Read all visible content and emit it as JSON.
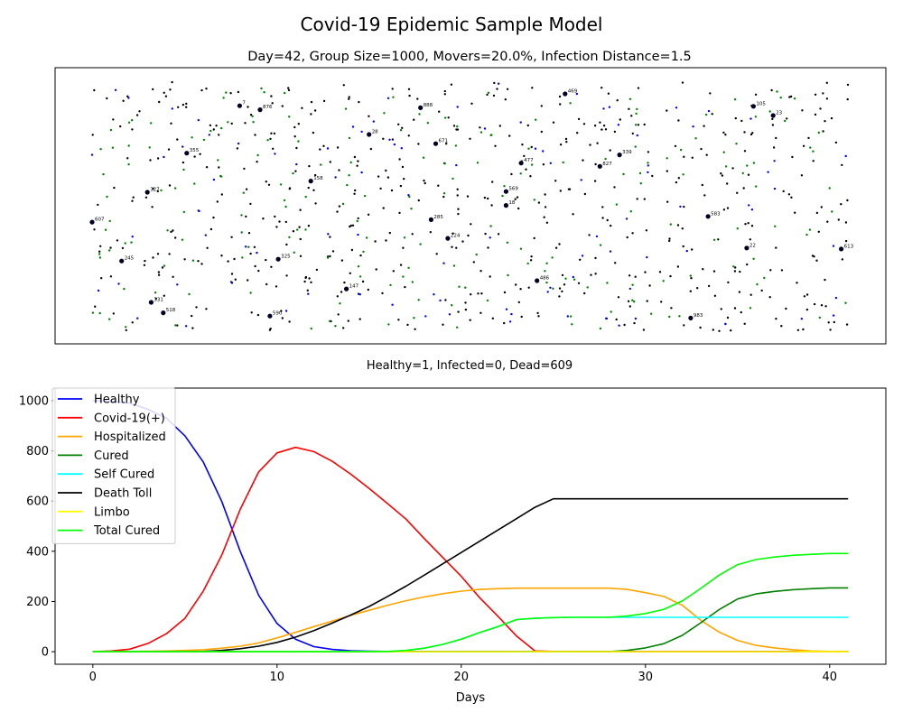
{
  "suptitle": "Covid-19 Epidemic Sample Model",
  "chart_data": [
    {
      "type": "scatter",
      "title": "Day=42, Group Size=1000, Movers=20.0%, Infection Distance=1.5",
      "xlabel": "Healthy=1, Infected=0, Dead=609",
      "axes_visible": false,
      "xlim": [
        0,
        1000
      ],
      "ylim": [
        0,
        1000
      ],
      "series": [
        {
          "name": "",
          "role": "dead",
          "color": "#000000",
          "points": []
        },
        {
          "name": "",
          "role": "cured",
          "color": "#008000",
          "points": []
        },
        {
          "name": "",
          "role": "self-cured",
          "color": "#0000ff",
          "points": []
        }
      ],
      "labeled_points": [
        {
          "label": "7",
          "x": 195,
          "y": 905
        },
        {
          "label": "876",
          "x": 222,
          "y": 889
        },
        {
          "label": "888",
          "x": 434,
          "y": 897
        },
        {
          "label": "469",
          "x": 625,
          "y": 953
        },
        {
          "label": "105",
          "x": 874,
          "y": 903
        },
        {
          "label": "23",
          "x": 900,
          "y": 866
        },
        {
          "label": "28",
          "x": 366,
          "y": 790
        },
        {
          "label": "671",
          "x": 454,
          "y": 753
        },
        {
          "label": "355",
          "x": 125,
          "y": 715
        },
        {
          "label": "339",
          "x": 697,
          "y": 708
        },
        {
          "label": "477",
          "x": 567,
          "y": 675
        },
        {
          "label": "827",
          "x": 671,
          "y": 662
        },
        {
          "label": "158",
          "x": 289,
          "y": 603
        },
        {
          "label": "327",
          "x": 73,
          "y": 558
        },
        {
          "label": "569",
          "x": 547,
          "y": 561
        },
        {
          "label": "18",
          "x": 547,
          "y": 505
        },
        {
          "label": "583",
          "x": 814,
          "y": 461
        },
        {
          "label": "285",
          "x": 448,
          "y": 448
        },
        {
          "label": "607",
          "x": 0,
          "y": 438
        },
        {
          "label": "224",
          "x": 470,
          "y": 373
        },
        {
          "label": "22",
          "x": 865,
          "y": 334
        },
        {
          "label": "613",
          "x": 990,
          "y": 330
        },
        {
          "label": "245",
          "x": 39,
          "y": 282
        },
        {
          "label": "325",
          "x": 246,
          "y": 289
        },
        {
          "label": "486",
          "x": 588,
          "y": 203
        },
        {
          "label": "147",
          "x": 336,
          "y": 170
        },
        {
          "label": "331",
          "x": 78,
          "y": 116
        },
        {
          "label": "518",
          "x": 94,
          "y": 74
        },
        {
          "label": "590",
          "x": 235,
          "y": 61
        },
        {
          "label": "983",
          "x": 791,
          "y": 53
        }
      ]
    },
    {
      "type": "line",
      "xlabel": "Days",
      "ylabel": "",
      "xlim": [
        -2.05,
        43.05
      ],
      "ylim": [
        -50,
        1050
      ],
      "xticks": [
        0,
        10,
        20,
        30,
        40
      ],
      "yticks": [
        0,
        200,
        400,
        600,
        800,
        1000
      ],
      "legend": "upper left",
      "x": [
        0,
        1,
        2,
        3,
        4,
        5,
        6,
        7,
        8,
        9,
        10,
        11,
        12,
        13,
        14,
        15,
        16,
        17,
        18,
        19,
        20,
        21,
        22,
        23,
        24,
        25,
        26,
        27,
        28,
        29,
        30,
        31,
        32,
        33,
        34,
        35,
        36,
        37,
        38,
        39,
        40,
        41
      ],
      "series": [
        {
          "name": "Healthy",
          "color": "#0000ff",
          "values": [
            1000,
            997,
            990,
            965,
            930,
            860,
            755,
            598,
            400,
            225,
            112,
            50,
            20,
            9,
            4,
            2,
            1,
            1,
            1,
            1,
            1,
            1,
            1,
            1,
            1,
            1,
            1,
            1,
            1,
            1,
            1,
            1,
            1,
            1,
            1,
            1,
            1,
            1,
            1,
            1,
            1,
            1
          ]
        },
        {
          "name": "Covid-19(+)",
          "color": "#ff0000",
          "values": [
            0,
            3,
            10,
            33,
            72,
            133,
            242,
            385,
            567,
            716,
            792,
            814,
            797,
            758,
            707,
            650,
            590,
            528,
            450,
            375,
            300,
            215,
            140,
            62,
            3,
            1,
            0,
            0,
            0,
            0,
            0,
            0,
            0,
            0,
            0,
            0,
            0,
            0,
            0,
            0,
            0,
            0
          ]
        },
        {
          "name": "Hospitalized",
          "color": "#ffa500",
          "values": [
            0,
            0,
            1,
            2,
            3,
            5,
            8,
            14,
            22,
            35,
            55,
            77,
            100,
            122,
            145,
            165,
            185,
            203,
            218,
            231,
            241,
            248,
            251,
            253,
            253,
            253,
            253,
            253,
            253,
            248,
            235,
            220,
            185,
            125,
            78,
            45,
            25,
            15,
            8,
            3,
            1,
            0
          ]
        },
        {
          "name": "Cured",
          "color": "#008000",
          "values": [
            0,
            0,
            0,
            0,
            0,
            0,
            0,
            0,
            0,
            0,
            0,
            0,
            0,
            0,
            0,
            0,
            0,
            0,
            0,
            0,
            0,
            0,
            0,
            0,
            0,
            0,
            0,
            0,
            0,
            5,
            15,
            32,
            65,
            115,
            168,
            210,
            230,
            240,
            247,
            251,
            254,
            254
          ]
        },
        {
          "name": "Self Cured",
          "color": "#00ffff",
          "values": [
            0,
            0,
            0,
            0,
            0,
            0,
            0,
            0,
            0,
            0,
            0,
            0,
            0,
            0,
            0,
            0,
            0,
            5,
            14,
            29,
            50,
            76,
            100,
            128,
            133,
            136,
            137,
            137,
            137,
            137,
            137,
            137,
            137,
            137,
            137,
            137,
            137,
            137,
            137,
            137,
            137,
            137
          ]
        },
        {
          "name": "Death Toll",
          "color": "#000000",
          "values": [
            0,
            0,
            0,
            0,
            0,
            0,
            1,
            5,
            12,
            22,
            37,
            58,
            84,
            114,
            146,
            180,
            220,
            261,
            305,
            350,
            395,
            440,
            485,
            530,
            575,
            609,
            609,
            609,
            609,
            609,
            609,
            609,
            609,
            609,
            609,
            609,
            609,
            609,
            609,
            609,
            609,
            609
          ]
        },
        {
          "name": "Limbo",
          "color": "#ffff00",
          "values": [
            0,
            0,
            0,
            0,
            0,
            0,
            0,
            0,
            0,
            0,
            0,
            0,
            0,
            0,
            0,
            0,
            0,
            0,
            0,
            0,
            0,
            0,
            0,
            0,
            0,
            0,
            0,
            0,
            0,
            0,
            0,
            0,
            0,
            0,
            0,
            0,
            0,
            0,
            0,
            0,
            0,
            0
          ]
        },
        {
          "name": "Total Cured",
          "color": "#00ff00",
          "values": [
            0,
            0,
            0,
            0,
            0,
            0,
            0,
            0,
            0,
            0,
            0,
            0,
            0,
            0,
            0,
            0,
            1,
            5,
            14,
            29,
            50,
            76,
            100,
            128,
            133,
            136,
            137,
            137,
            137,
            142,
            152,
            169,
            202,
            252,
            305,
            347,
            367,
            377,
            384,
            388,
            391,
            391
          ]
        }
      ]
    }
  ]
}
